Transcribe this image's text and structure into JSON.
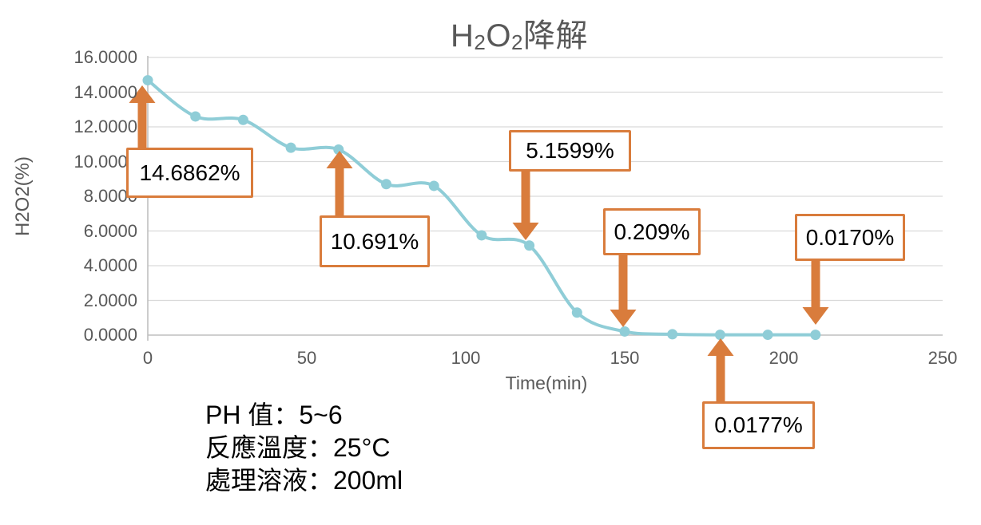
{
  "header": {
    "title": {
      "h1": "H",
      "s1": "2",
      "h2": "O",
      "s2": "2",
      "tail": "降解"
    }
  },
  "chart_data": {
    "type": "line",
    "title": "H2O2降解",
    "xlabel": "Time(min)",
    "ylabel": "H2O2(%)",
    "x": [
      0,
      15,
      30,
      45,
      60,
      75,
      90,
      105,
      120,
      135,
      150,
      165,
      180,
      195,
      210
    ],
    "y": [
      14.6862,
      12.6,
      12.4,
      10.8,
      10.691,
      8.7,
      8.6,
      5.75,
      5.1599,
      1.3,
      0.209,
      0.05,
      0.0177,
      0.02,
      0.017
    ],
    "xlim": [
      0,
      250
    ],
    "ylim": [
      0,
      16
    ],
    "x_ticks": [
      "0",
      "50",
      "100",
      "150",
      "200",
      "250"
    ],
    "y_ticks": [
      "0.0000",
      "2.0000",
      "4.0000",
      "6.0000",
      "8.0000",
      "10.0000",
      "12.0000",
      "14.0000",
      "16.0000"
    ],
    "grid": true,
    "legend": false,
    "marker": "circle",
    "smooth": true,
    "annotations": [
      {
        "label": "14.6862%",
        "x": 0,
        "arrow": "up"
      },
      {
        "label": "10.691%",
        "x": 60,
        "arrow": "up"
      },
      {
        "label": "5.1599%",
        "x": 120,
        "arrow": "down"
      },
      {
        "label": "0.209%",
        "x": 150,
        "arrow": "down"
      },
      {
        "label": "0.0170%",
        "x": 210,
        "arrow": "down"
      },
      {
        "label": "0.0177%",
        "x": 180,
        "arrow": "up"
      }
    ]
  },
  "colors": {
    "line": "#8FCDD7",
    "accent": "#D97C3C",
    "grid": "#D9D9D9",
    "axis_line": "#BFBFBF",
    "axis_text": "#595959",
    "annotation_text": "#000000",
    "annotation_bg": "#FFFFFF"
  },
  "notes": [
    "PH 值：5~6",
    "反應溫度：25°C",
    "處理溶液：200ml"
  ]
}
